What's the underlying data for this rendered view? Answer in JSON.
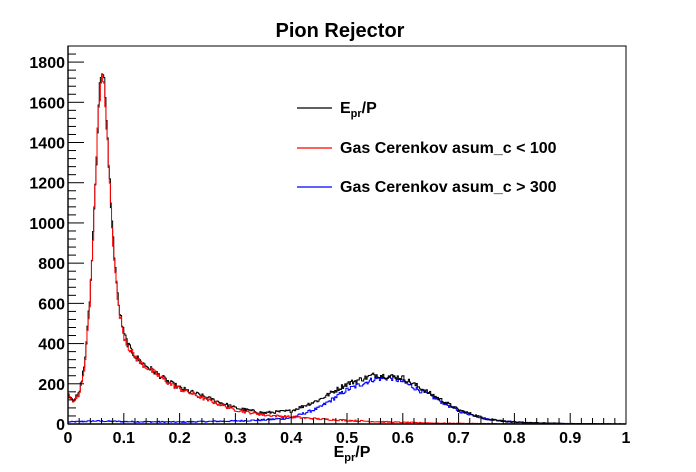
{
  "chart_data": {
    "type": "line",
    "title": "Pion Rejector",
    "xlabel": {
      "main": "E",
      "sub": "pr",
      "rest": "/P"
    },
    "ylabel": "",
    "xlim": [
      0,
      1
    ],
    "ylim": [
      0,
      1880
    ],
    "xticks": [
      "0",
      "0.1",
      "0.2",
      "0.3",
      "0.4",
      "0.5",
      "0.6",
      "0.7",
      "0.8",
      "0.9",
      "1"
    ],
    "yticks": [
      "0",
      "200",
      "400",
      "600",
      "800",
      "1000",
      "1200",
      "1400",
      "1600",
      "1800"
    ],
    "grid": false,
    "legend_position": "top-right",
    "series": [
      {
        "key": "epr",
        "name": {
          "main": "E",
          "sub": "pr",
          "rest": "/P"
        },
        "color": "#000000",
        "x": [
          0.0,
          0.01,
          0.02,
          0.03,
          0.04,
          0.05,
          0.055,
          0.06,
          0.065,
          0.07,
          0.08,
          0.09,
          0.1,
          0.11,
          0.12,
          0.13,
          0.15,
          0.18,
          0.2,
          0.25,
          0.3,
          0.35,
          0.4,
          0.45,
          0.5,
          0.55,
          0.6,
          0.65,
          0.7,
          0.75,
          0.8,
          0.9,
          1.0
        ],
        "y": [
          150,
          120,
          150,
          300,
          650,
          1250,
          1600,
          1780,
          1700,
          1450,
          950,
          600,
          450,
          380,
          340,
          310,
          270,
          210,
          180,
          130,
          80,
          55,
          65,
          120,
          200,
          245,
          230,
          150,
          70,
          25,
          8,
          2,
          0
        ]
      },
      {
        "key": "gas_low",
        "name": "Gas Cerenkov asum_c < 100",
        "color": "#ff0000",
        "x": [
          0.0,
          0.01,
          0.02,
          0.03,
          0.04,
          0.05,
          0.055,
          0.06,
          0.065,
          0.07,
          0.08,
          0.09,
          0.1,
          0.11,
          0.12,
          0.13,
          0.15,
          0.18,
          0.2,
          0.25,
          0.3,
          0.35,
          0.4,
          0.45,
          0.5,
          0.55,
          0.6,
          0.65,
          0.7,
          0.8,
          1.0
        ],
        "y": [
          140,
          110,
          140,
          290,
          640,
          1240,
          1580,
          1720,
          1680,
          1440,
          940,
          590,
          440,
          375,
          335,
          305,
          265,
          205,
          175,
          120,
          70,
          45,
          35,
          25,
          18,
          12,
          8,
          5,
          3,
          1,
          0
        ]
      },
      {
        "key": "gas_high",
        "name": "Gas Cerenkov asum_c > 300",
        "color": "#0000ff",
        "x": [
          0.0,
          0.05,
          0.1,
          0.2,
          0.3,
          0.35,
          0.4,
          0.45,
          0.5,
          0.55,
          0.58,
          0.6,
          0.65,
          0.7,
          0.75,
          0.8,
          0.85,
          0.9,
          1.0
        ],
        "y": [
          10,
          15,
          12,
          10,
          15,
          20,
          30,
          80,
          170,
          225,
          230,
          210,
          140,
          65,
          25,
          10,
          4,
          2,
          0
        ]
      }
    ]
  }
}
